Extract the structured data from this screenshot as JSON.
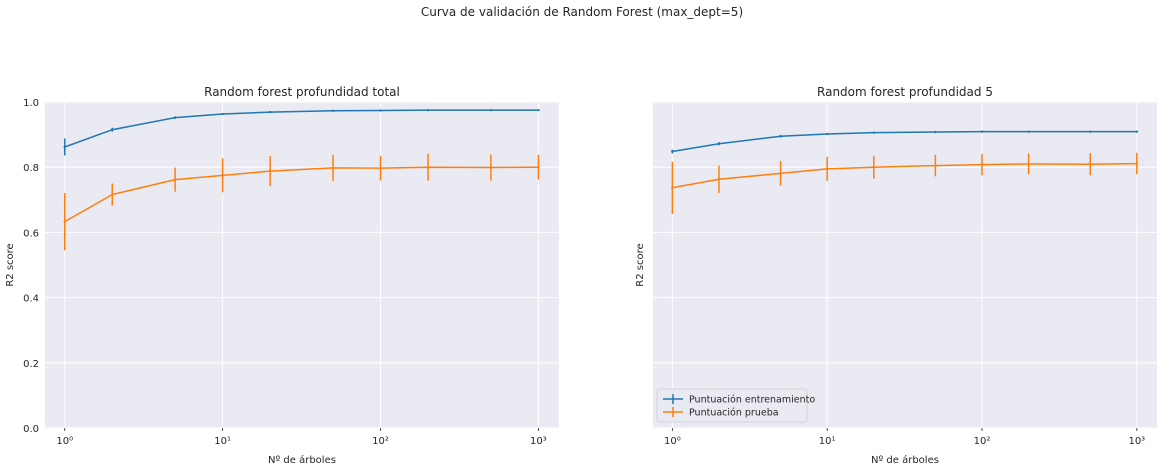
{
  "suptitle": "Curva de validación de Random Forest (max_dept=5)",
  "colors": {
    "background": "#EAEAF2",
    "grid": "#FFFFFF",
    "train": "#1F77B4",
    "test": "#FF7F0E"
  },
  "chart_data": [
    {
      "type": "line",
      "title": "Random forest profundidad total",
      "xlabel": "Nº de árboles",
      "ylabel": "R2 score",
      "xscale": "log",
      "x_tick_labels": [
        "10⁰",
        "10¹",
        "10²",
        "10³"
      ],
      "y_tick_labels": [
        "0.0",
        "0.2",
        "0.4",
        "0.6",
        "0.8",
        "1.0"
      ],
      "ylim": [
        0,
        1
      ],
      "grid": true,
      "x": [
        1,
        2,
        5,
        10,
        20,
        50,
        100,
        200,
        500,
        1000
      ],
      "series": [
        {
          "name": "Puntuación entrenamiento",
          "color": "train",
          "values": [
            0.862,
            0.915,
            0.952,
            0.963,
            0.969,
            0.973,
            0.974,
            0.975,
            0.975,
            0.975
          ],
          "errors": [
            0.026,
            0.006,
            0.004,
            0.003,
            0.002,
            0.002,
            0.002,
            0.002,
            0.002,
            0.002
          ]
        },
        {
          "name": "Puntuación prueba",
          "color": "test",
          "values": [
            0.633,
            0.716,
            0.762,
            0.775,
            0.788,
            0.798,
            0.797,
            0.8,
            0.799,
            0.8
          ],
          "errors": [
            0.088,
            0.034,
            0.037,
            0.052,
            0.046,
            0.04,
            0.038,
            0.041,
            0.04,
            0.038
          ]
        }
      ]
    },
    {
      "type": "line",
      "title": "Random forest profundidad 5",
      "xlabel": "Nº de árboles",
      "ylabel": "R2 score",
      "xscale": "log",
      "x_tick_labels": [
        "10⁰",
        "10¹",
        "10²",
        "10³"
      ],
      "ylim": [
        0,
        1
      ],
      "grid": true,
      "legend": "lower-left",
      "x": [
        1,
        2,
        5,
        10,
        20,
        50,
        100,
        200,
        500,
        1000
      ],
      "series": [
        {
          "name": "Puntuación entrenamiento",
          "color": "train",
          "values": [
            0.848,
            0.872,
            0.895,
            0.902,
            0.906,
            0.908,
            0.909,
            0.909,
            0.909,
            0.909
          ],
          "errors": [
            0.006,
            0.005,
            0.004,
            0.003,
            0.002,
            0.002,
            0.002,
            0.002,
            0.002,
            0.002
          ]
        },
        {
          "name": "Puntuación prueba",
          "color": "test",
          "values": [
            0.737,
            0.763,
            0.781,
            0.795,
            0.8,
            0.805,
            0.808,
            0.81,
            0.809,
            0.811
          ],
          "errors": [
            0.08,
            0.042,
            0.038,
            0.037,
            0.035,
            0.033,
            0.033,
            0.032,
            0.034,
            0.033
          ]
        }
      ]
    }
  ]
}
